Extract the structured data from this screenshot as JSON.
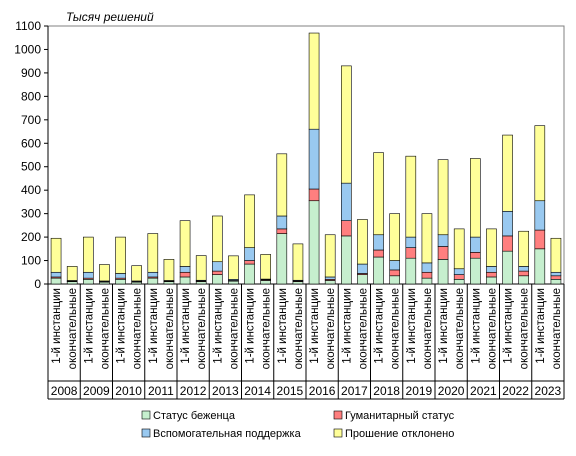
{
  "chart_data": {
    "type": "bar",
    "stacked": true,
    "unit_label": "Тысяч решений",
    "ylim": [
      0,
      1100
    ],
    "yticks": [
      0,
      100,
      200,
      300,
      400,
      500,
      600,
      700,
      800,
      900,
      1000,
      1100
    ],
    "grid": false,
    "legend_position": "bottom",
    "years": [
      "2008",
      "2009",
      "2010",
      "2011",
      "2012",
      "2013",
      "2014",
      "2015",
      "2016",
      "2017",
      "2018",
      "2019",
      "2020",
      "2021",
      "2022",
      "2023"
    ],
    "instances": [
      "1-й инстанции",
      "окончательные"
    ],
    "series": [
      {
        "name": "Статус беженца",
        "color": "#c6efce",
        "values": [
          25,
          10,
          20,
          8,
          20,
          8,
          25,
          10,
          30,
          10,
          40,
          12,
          85,
          15,
          215,
          10,
          355,
          15,
          205,
          40,
          115,
          35,
          110,
          25,
          105,
          20,
          110,
          30,
          140,
          35,
          150,
          20
        ]
      },
      {
        "name": "Гуманитарный статус",
        "color": "#ff7f7f",
        "values": [
          5,
          2,
          5,
          2,
          5,
          2,
          5,
          2,
          20,
          3,
          15,
          3,
          15,
          3,
          20,
          3,
          50,
          5,
          65,
          5,
          30,
          25,
          45,
          25,
          55,
          20,
          25,
          20,
          65,
          20,
          80,
          15
        ]
      },
      {
        "name": "Вспомогательная поддержка",
        "color": "#99c9f0",
        "values": [
          20,
          3,
          25,
          3,
          20,
          3,
          20,
          3,
          25,
          3,
          40,
          5,
          55,
          3,
          55,
          3,
          255,
          10,
          160,
          40,
          65,
          40,
          45,
          40,
          50,
          25,
          65,
          25,
          105,
          20,
          125,
          15
        ]
      },
      {
        "name": "Прошение отклонено",
        "color": "#ffff99",
        "values": [
          145,
          60,
          150,
          70,
          155,
          65,
          165,
          90,
          195,
          105,
          195,
          100,
          225,
          105,
          265,
          155,
          410,
          180,
          500,
          190,
          350,
          200,
          345,
          210,
          320,
          170,
          335,
          160,
          325,
          150,
          320,
          145
        ]
      }
    ]
  }
}
